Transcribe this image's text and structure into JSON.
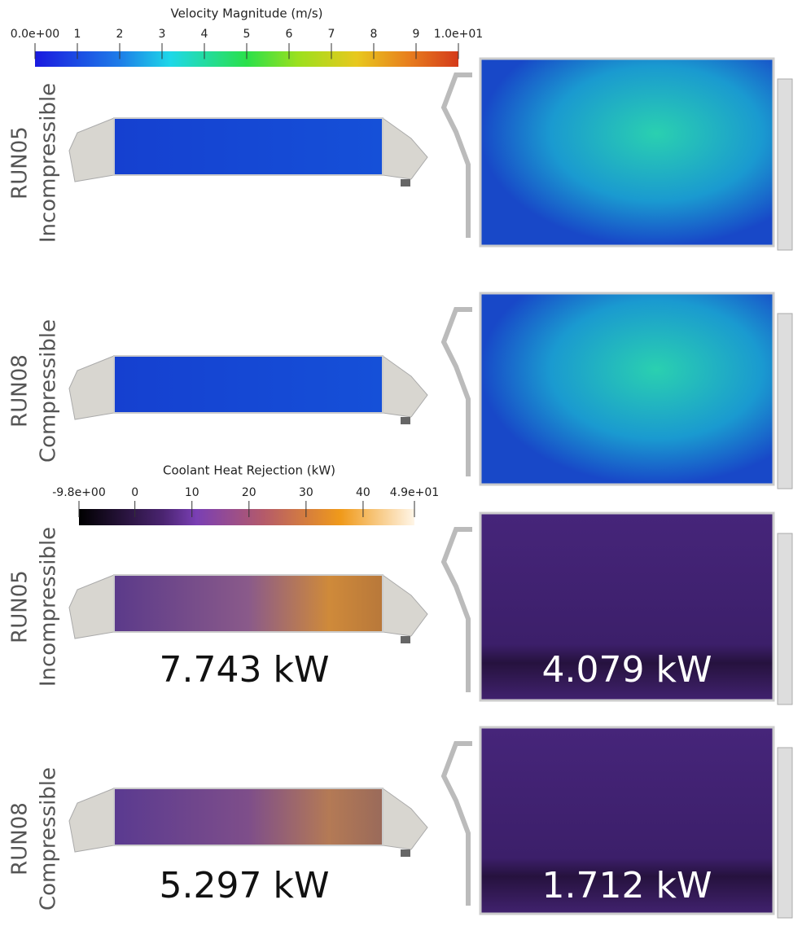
{
  "colorbars": [
    {
      "title": "Velocity Magnitude (m/s)",
      "lim": [
        0,
        10
      ],
      "ticks": [
        {
          "value": 0,
          "label": "0.0e+00"
        },
        1,
        2,
        3,
        4,
        5,
        6,
        7,
        8,
        9,
        {
          "value": 10,
          "label": "1.0e+01"
        }
      ]
    },
    {
      "title": "Coolant Heat Rejection (kW)",
      "lim": [
        -9.8,
        49
      ],
      "ticks": [
        {
          "value": -9.8,
          "label": "-9.8e+00"
        },
        0,
        10,
        20,
        30,
        40,
        {
          "value": 49,
          "label": "4.9e+01"
        }
      ]
    }
  ],
  "rows": [
    {
      "run": "RUN05",
      "model": "Incompressible"
    },
    {
      "run": "RUN08",
      "model": "Compressible"
    },
    {
      "run": "RUN05",
      "model": "Incompressible",
      "left_heat": "7.743 kW",
      "right_heat": "4.079 kW"
    },
    {
      "run": "RUN08",
      "model": "Compressible",
      "left_heat": "5.297 kW",
      "right_heat": "1.712 kW"
    }
  ]
}
